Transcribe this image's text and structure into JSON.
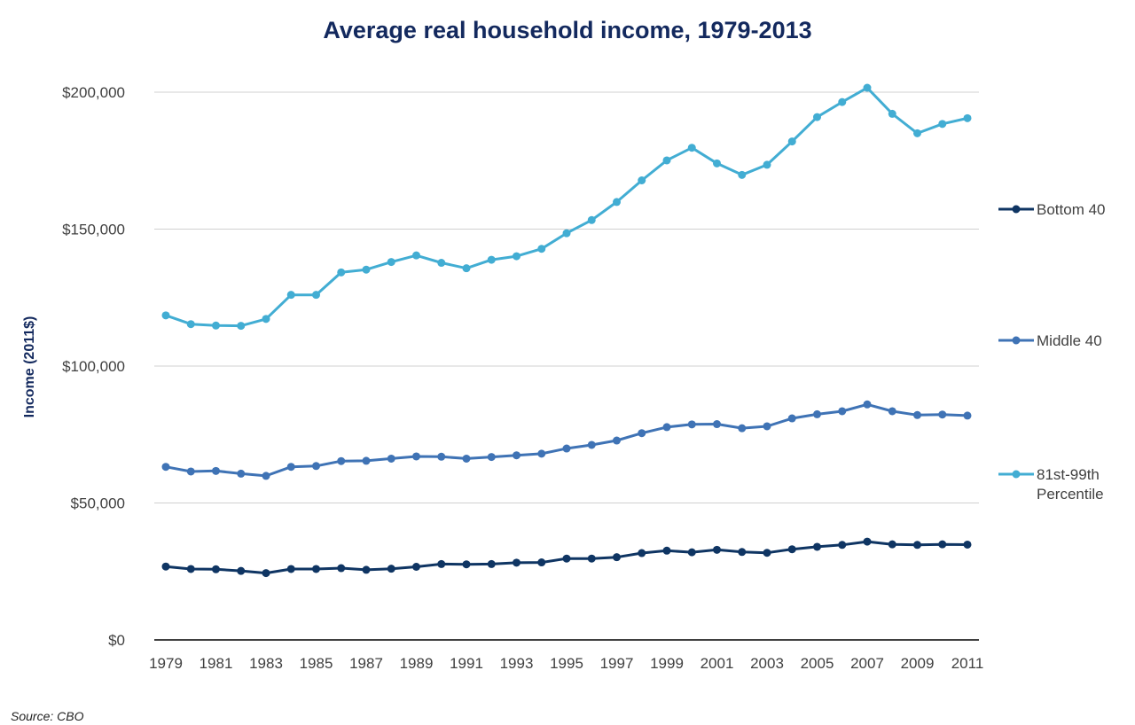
{
  "chart_data": {
    "type": "line",
    "title": "Average real household income, 1979-2013",
    "xlabel": "",
    "ylabel": "Income (2011$)",
    "ylim": [
      0,
      200000
    ],
    "yticks": [
      "$0",
      "$50,000",
      "$100,000",
      "$150,000",
      "$200,000"
    ],
    "x": [
      1979,
      1980,
      1981,
      1982,
      1983,
      1984,
      1985,
      1986,
      1987,
      1988,
      1989,
      1990,
      1991,
      1992,
      1993,
      1994,
      1995,
      1996,
      1997,
      1998,
      1999,
      2000,
      2001,
      2002,
      2003,
      2004,
      2005,
      2006,
      2007,
      2008,
      2009,
      2010,
      2011
    ],
    "xticks": [
      "1979",
      "1981",
      "1983",
      "1985",
      "1987",
      "1989",
      "1991",
      "1993",
      "1995",
      "1997",
      "1999",
      "2001",
      "2003",
      "2005",
      "2007",
      "2009",
      "2011"
    ],
    "grid": true,
    "legend_position": "right",
    "series": [
      {
        "name": "Bottom 40",
        "color": "#0f3563",
        "values": [
          26800,
          25900,
          25800,
          25200,
          24400,
          25900,
          25900,
          26200,
          25600,
          26000,
          26700,
          27700,
          27600,
          27700,
          28200,
          28300,
          29700,
          29700,
          30200,
          31700,
          32600,
          32000,
          32900,
          32100,
          31800,
          33100,
          34000,
          34700,
          35900,
          34900,
          34700,
          34900,
          34800
        ]
      },
      {
        "name": "Middle 40",
        "color": "#3f73b5",
        "values": [
          63200,
          61500,
          61700,
          60700,
          59900,
          63200,
          63500,
          65300,
          65400,
          66200,
          67000,
          66900,
          66200,
          66800,
          67400,
          68000,
          69900,
          71200,
          72800,
          75500,
          77700,
          78700,
          78800,
          77300,
          78000,
          80900,
          82400,
          83500,
          86000,
          83500,
          82100,
          82300,
          81900
        ]
      },
      {
        "name": "81st-99th Percentile",
        "color": "#42add3",
        "values": [
          118500,
          115300,
          114800,
          114700,
          117200,
          126000,
          126000,
          134200,
          135200,
          138000,
          140400,
          137700,
          135700,
          138800,
          140100,
          142800,
          148500,
          153300,
          159900,
          167800,
          175100,
          179700,
          174000,
          169800,
          173500,
          182000,
          190900,
          196400,
          201600,
          192100,
          185000,
          188400,
          190500
        ]
      }
    ]
  },
  "source": "Source: CBO",
  "colors": {
    "title": "#13295e",
    "grid": "#d0d0d0",
    "text": "#404040"
  }
}
